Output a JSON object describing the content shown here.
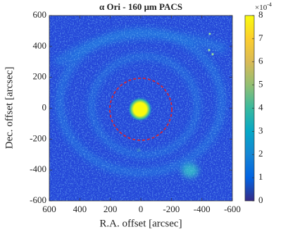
{
  "chart_data": {
    "type": "heatmap",
    "title": "α Ori - 160 μm PACS",
    "xlabel": "R.A. offset [arcsec]",
    "ylabel": "Dec. offset [arcsec]",
    "xlim": [
      600,
      -600
    ],
    "xticks": [
      600,
      400,
      200,
      0,
      -200,
      -400,
      -600
    ],
    "ylim": [
      -600,
      600
    ],
    "yticks": [
      -600,
      -400,
      -200,
      0,
      200,
      400,
      600
    ],
    "colorbar": {
      "lim": [
        0,
        8
      ],
      "ticks": [
        0,
        1,
        2,
        3,
        4,
        5,
        6,
        7,
        8
      ],
      "scale_base": "×10",
      "scale_exponent": "-4",
      "colormap": [
        "#352a87",
        "#0363e1",
        "#1485d4",
        "#06a7c6",
        "#38b99e",
        "#92bf73",
        "#d9ba56",
        "#fcce2e",
        "#f9fb0e"
      ]
    }
  }
}
